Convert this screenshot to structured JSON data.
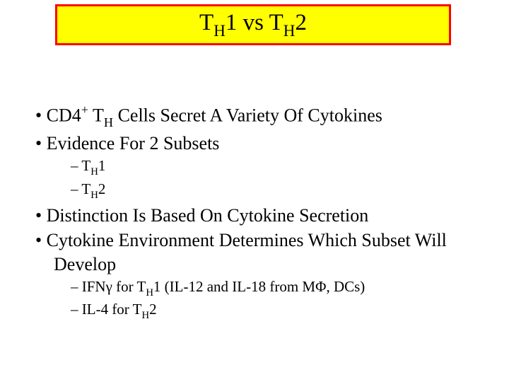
{
  "title": {
    "p1": "T",
    "p2": "H",
    "p3": "1 vs T",
    "p4": "H",
    "p5": "2"
  },
  "b1": {
    "dot": "•  ",
    "t1": "CD4",
    "sup": "+",
    "t2": " T",
    "sub": "H",
    "t3": " Cells Secret A Variety Of Cytokines"
  },
  "b2": {
    "dot": "•  ",
    "t1": "Evidence For 2 Subsets"
  },
  "b2a": {
    "dash": "–  ",
    "t1": "T",
    "sub": "H",
    "t2": "1"
  },
  "b2b": {
    "dash": "–  ",
    "t1": "T",
    "sub": "H",
    "t2": "2"
  },
  "b3": {
    "dot": "•  ",
    "t1": "Distinction Is Based On Cytokine Secretion"
  },
  "b4": {
    "dot": "•  ",
    "t1": "Cytokine Environment Determines Which Subset Will Develop"
  },
  "b4a": {
    "dash": "–  ",
    "t1": "IFNγ for T",
    "sub": "H",
    "t2": "1 (IL-12 and IL-18 from MΦ, DCs)"
  },
  "b4b": {
    "dash": "–  ",
    "t1": "IL-4 for T",
    "sub": "H",
    "t2": "2"
  }
}
